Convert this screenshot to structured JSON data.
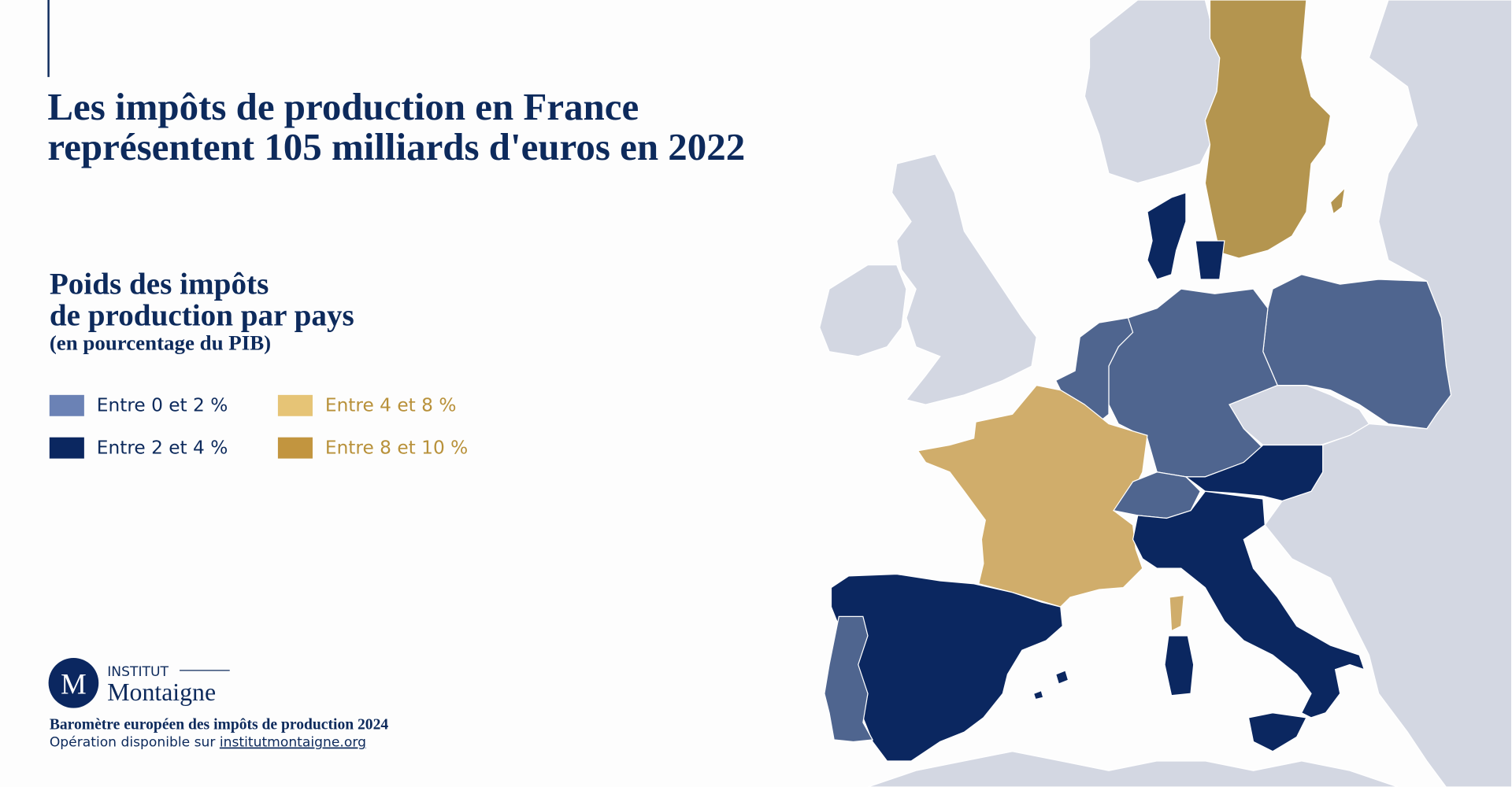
{
  "header": {
    "title_lines": [
      "Les impôts de production en France",
      "représentent 105 milliards d'euros en 2022"
    ]
  },
  "legend": {
    "title_lines": [
      "Poids des impôts",
      "de production par pays"
    ],
    "note": "(en pourcentage du PIB)",
    "items": [
      {
        "label": "Entre 0 et 2 %",
        "color": "#6b82b5",
        "label_color": "#0d2a5c"
      },
      {
        "label": "Entre 2 et 4 %",
        "color": "#0b2760",
        "label_color": "#0d2a5c"
      },
      {
        "label": "Entre 4 et 8 %",
        "color": "#e6c476",
        "label_color": "#b8913a"
      },
      {
        "label": "Entre 8 et 10 %",
        "color": "#c2953f",
        "label_color": "#b8913a"
      }
    ]
  },
  "logo": {
    "letter": "M",
    "kicker": "INSTITUT",
    "name": "Montaigne"
  },
  "footer": {
    "title": "Baromètre européen des impôts de production 2024",
    "text": "Opération disponible sur",
    "link": "institutmontaigne.org"
  }
}
